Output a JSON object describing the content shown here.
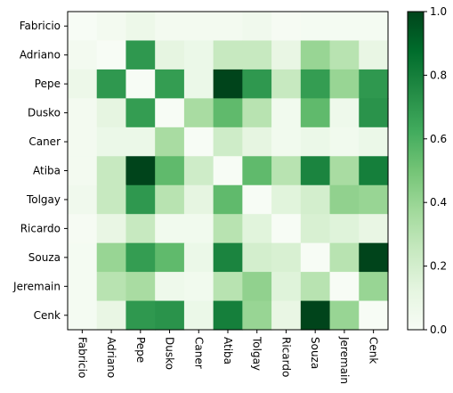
{
  "chart_data": {
    "type": "heatmap",
    "title": "",
    "xlabel": "",
    "ylabel": "",
    "rows": [
      "Fabricio",
      "Adriano",
      "Pepe",
      "Dusko",
      "Caner",
      "Atiba",
      "Tolgay",
      "Ricardo",
      "Souza",
      "Jeremain",
      "Cenk"
    ],
    "columns": [
      "Fabricio",
      "Adriano",
      "Pepe",
      "Dusko",
      "Caner",
      "Atiba",
      "Tolgay",
      "Ricardo",
      "Souza",
      "Jeremain",
      "Cenk"
    ],
    "values": [
      [
        0.0,
        0.03,
        0.07,
        0.03,
        0.03,
        0.03,
        0.05,
        0.01,
        0.02,
        0.02,
        0.02
      ],
      [
        0.03,
        0.0,
        0.7,
        0.12,
        0.08,
        0.25,
        0.25,
        0.1,
        0.4,
        0.3,
        0.1
      ],
      [
        0.07,
        0.7,
        0.0,
        0.68,
        0.08,
        1.0,
        0.7,
        0.25,
        0.68,
        0.4,
        0.7
      ],
      [
        0.03,
        0.12,
        0.68,
        0.0,
        0.35,
        0.55,
        0.3,
        0.04,
        0.55,
        0.06,
        0.72
      ],
      [
        0.03,
        0.08,
        0.08,
        0.35,
        0.0,
        0.22,
        0.12,
        0.04,
        0.08,
        0.04,
        0.08
      ],
      [
        0.03,
        0.25,
        1.0,
        0.55,
        0.22,
        0.0,
        0.55,
        0.3,
        0.78,
        0.35,
        0.8
      ],
      [
        0.05,
        0.25,
        0.7,
        0.3,
        0.12,
        0.55,
        0.0,
        0.14,
        0.2,
        0.42,
        0.4
      ],
      [
        0.01,
        0.1,
        0.25,
        0.04,
        0.04,
        0.3,
        0.14,
        0.0,
        0.18,
        0.15,
        0.1
      ],
      [
        0.02,
        0.4,
        0.68,
        0.55,
        0.08,
        0.78,
        0.2,
        0.18,
        0.0,
        0.3,
        1.0
      ],
      [
        0.02,
        0.3,
        0.35,
        0.06,
        0.04,
        0.3,
        0.42,
        0.15,
        0.3,
        0.0,
        0.4
      ],
      [
        0.02,
        0.1,
        0.7,
        0.72,
        0.08,
        0.8,
        0.4,
        0.1,
        1.0,
        0.4,
        0.0
      ]
    ],
    "colorbar": {
      "range": [
        0.0,
        1.0
      ],
      "ticks": [
        0.0,
        0.2,
        0.4,
        0.6,
        0.8,
        1.0
      ],
      "tick_labels": [
        "0.0",
        "0.2",
        "0.4",
        "0.6",
        "0.8",
        "1.0"
      ]
    },
    "colormap": "Greens",
    "colormap_stops": [
      "#f7fcf5",
      "#e5f5e0",
      "#c7e9c0",
      "#a1d99b",
      "#74c476",
      "#41ab5d",
      "#238b45",
      "#006d2c",
      "#00441b"
    ],
    "grid": false,
    "legend": "colorbar-right"
  }
}
